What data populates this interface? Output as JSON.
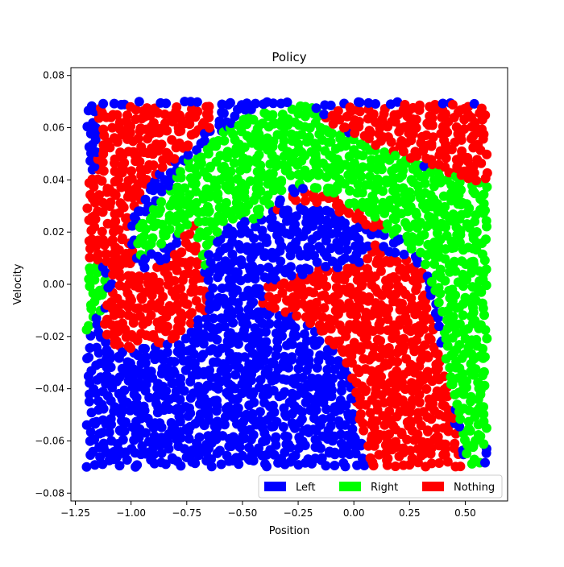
{
  "chart_data": {
    "type": "scatter",
    "title": "Policy",
    "xlabel": "Position",
    "ylabel": "Velocity",
    "xlim": [
      -1.27,
      0.69
    ],
    "ylim": [
      -0.083,
      0.083
    ],
    "xticks": [
      -1.25,
      -1.0,
      -0.75,
      -0.5,
      -0.25,
      0.0,
      0.25,
      0.5
    ],
    "xtick_labels": [
      "−1.25",
      "−1.00",
      "−0.75",
      "−0.50",
      "−0.25",
      "0.00",
      "0.25",
      "0.50"
    ],
    "yticks": [
      -0.08,
      -0.06,
      -0.04,
      -0.02,
      0.0,
      0.02,
      0.04,
      0.06,
      0.08
    ],
    "ytick_labels": [
      "−0.08",
      "−0.06",
      "−0.04",
      "−0.02",
      "0.00",
      "0.02",
      "0.04",
      "0.06",
      "0.08"
    ],
    "legend_position": "lower-right",
    "grid": false,
    "series": [
      {
        "name": "Left",
        "color": "#0000ff",
        "regions": [
          [
            [
              -1.2,
              0.068
            ],
            [
              -1.15,
              0.068
            ],
            [
              -1.15,
              0.043
            ],
            [
              -1.2,
              0.043
            ]
          ],
          [
            [
              -1.2,
              -0.025
            ],
            [
              -1.14,
              -0.022
            ],
            [
              -1.08,
              -0.026
            ],
            [
              -0.98,
              -0.028
            ],
            [
              -0.85,
              -0.024
            ],
            [
              -0.75,
              -0.02
            ],
            [
              -0.7,
              -0.012
            ],
            [
              -0.62,
              -0.005
            ],
            [
              -0.55,
              0.0
            ],
            [
              -0.47,
              0.004
            ],
            [
              -0.42,
              0.002
            ],
            [
              -0.4,
              -0.005
            ],
            [
              -0.38,
              -0.01
            ],
            [
              -0.3,
              -0.012
            ],
            [
              -0.2,
              -0.015
            ],
            [
              -0.12,
              -0.02
            ],
            [
              -0.05,
              -0.027
            ],
            [
              0.0,
              -0.04
            ],
            [
              0.02,
              -0.055
            ],
            [
              0.04,
              -0.065
            ],
            [
              0.05,
              -0.07
            ],
            [
              -1.2,
              -0.07
            ]
          ],
          [
            [
              -0.37,
              0.025
            ],
            [
              -0.3,
              0.032
            ],
            [
              -0.2,
              0.03
            ],
            [
              -0.14,
              0.026
            ],
            [
              -0.08,
              0.024
            ],
            [
              -0.02,
              0.02
            ],
            [
              0.03,
              0.016
            ],
            [
              0.05,
              0.012
            ],
            [
              0.01,
              0.007
            ],
            [
              -0.03,
              0.006
            ],
            [
              -0.08,
              0.006
            ],
            [
              -0.14,
              0.006
            ],
            [
              -0.17,
              0.011
            ],
            [
              -0.2,
              0.015
            ],
            [
              -0.24,
              0.016
            ],
            [
              -0.28,
              0.014
            ],
            [
              -0.34,
              0.016
            ],
            [
              -0.37,
              0.02
            ]
          ]
        ]
      },
      {
        "name": "Right",
        "color": "#00ff00",
        "regions": [
          [
            [
              -0.65,
              0.055
            ],
            [
              -0.5,
              0.064
            ],
            [
              -0.32,
              0.068
            ],
            [
              -0.2,
              0.069
            ],
            [
              -0.12,
              0.062
            ],
            [
              0.0,
              0.057
            ],
            [
              0.08,
              0.053
            ],
            [
              0.2,
              0.049
            ],
            [
              0.32,
              0.045
            ],
            [
              0.42,
              0.043
            ],
            [
              0.52,
              0.041
            ],
            [
              0.6,
              0.038
            ],
            [
              0.6,
              -0.055
            ],
            [
              0.57,
              -0.07
            ],
            [
              0.5,
              -0.07
            ],
            [
              0.47,
              -0.052
            ],
            [
              0.42,
              -0.035
            ],
            [
              0.38,
              -0.01
            ],
            [
              0.33,
              0.005
            ],
            [
              0.28,
              0.012
            ],
            [
              0.2,
              0.018
            ],
            [
              0.1,
              0.022
            ],
            [
              0.0,
              0.028
            ],
            [
              -0.1,
              0.033
            ],
            [
              -0.2,
              0.037
            ],
            [
              -0.3,
              0.037
            ],
            [
              -0.38,
              0.03
            ],
            [
              -0.45,
              0.024
            ],
            [
              -0.55,
              0.025
            ],
            [
              -0.6,
              0.022
            ],
            [
              -0.65,
              0.012
            ],
            [
              -0.68,
              0.002
            ],
            [
              -0.72,
              -0.008
            ],
            [
              -0.75,
              -0.006
            ],
            [
              -0.73,
              0.01
            ],
            [
              -0.7,
              0.024
            ],
            [
              -0.78,
              0.02
            ],
            [
              -0.85,
              0.015
            ],
            [
              -0.95,
              0.01
            ],
            [
              -1.0,
              0.012
            ],
            [
              -0.95,
              0.025
            ],
            [
              -0.85,
              0.035
            ],
            [
              -0.75,
              0.048
            ]
          ],
          [
            [
              -1.2,
              0.01
            ],
            [
              -1.12,
              0.006
            ],
            [
              -1.1,
              0.0
            ],
            [
              -1.12,
              -0.008
            ],
            [
              -1.16,
              -0.013
            ],
            [
              -1.2,
              -0.02
            ]
          ]
        ]
      },
      {
        "name": "Nothing",
        "color": "#ff0000",
        "regions": [
          [
            [
              -1.2,
              0.04
            ],
            [
              -1.15,
              0.043
            ],
            [
              -1.15,
              0.068
            ],
            [
              -0.6,
              0.069
            ],
            [
              -0.6,
              0.063
            ],
            [
              -0.68,
              0.057
            ],
            [
              -0.78,
              0.05
            ],
            [
              -0.88,
              0.042
            ],
            [
              -0.97,
              0.03
            ],
            [
              -1.02,
              0.018
            ],
            [
              -0.95,
              0.005
            ],
            [
              -0.83,
              0.01
            ],
            [
              -0.78,
              0.016
            ],
            [
              -0.72,
              0.024
            ],
            [
              -0.7,
              0.012
            ],
            [
              -0.67,
              0.002
            ],
            [
              -0.65,
              -0.008
            ],
            [
              -0.72,
              -0.015
            ],
            [
              -0.82,
              -0.022
            ],
            [
              -0.9,
              -0.024
            ],
            [
              -0.98,
              -0.025
            ],
            [
              -1.08,
              -0.023
            ],
            [
              -1.14,
              -0.02
            ],
            [
              -1.12,
              -0.01
            ],
            [
              -1.08,
              0.0
            ],
            [
              -1.1,
              0.006
            ],
            [
              -1.16,
              0.009
            ],
            [
              -1.2,
              0.01
            ]
          ],
          [
            [
              -0.13,
              0.063
            ],
            [
              -0.1,
              0.069
            ],
            [
              0.6,
              0.069
            ],
            [
              0.6,
              0.038
            ],
            [
              0.5,
              0.041
            ],
            [
              0.4,
              0.043
            ],
            [
              0.3,
              0.046
            ],
            [
              0.18,
              0.05
            ],
            [
              0.05,
              0.055
            ]
          ],
          [
            [
              -0.42,
              -0.006
            ],
            [
              -0.38,
              0.0
            ],
            [
              -0.3,
              0.002
            ],
            [
              -0.2,
              0.004
            ],
            [
              -0.13,
              0.009
            ],
            [
              -0.08,
              0.006
            ],
            [
              -0.03,
              0.006
            ],
            [
              0.02,
              0.008
            ],
            [
              0.06,
              0.012
            ],
            [
              0.08,
              0.019
            ],
            [
              0.15,
              0.012
            ],
            [
              0.28,
              0.008
            ],
            [
              0.32,
              0.004
            ],
            [
              0.36,
              -0.01
            ],
            [
              0.4,
              -0.03
            ],
            [
              0.44,
              -0.048
            ],
            [
              0.47,
              -0.06
            ],
            [
              0.5,
              -0.07
            ],
            [
              0.05,
              -0.07
            ],
            [
              0.04,
              -0.06
            ],
            [
              0.0,
              -0.04
            ],
            [
              -0.08,
              -0.025
            ],
            [
              -0.15,
              -0.018
            ],
            [
              -0.25,
              -0.013
            ],
            [
              -0.33,
              -0.011
            ],
            [
              -0.4,
              -0.009
            ]
          ],
          [
            [
              -0.37,
              0.024
            ],
            [
              -0.35,
              0.03
            ],
            [
              -0.28,
              0.035
            ],
            [
              -0.2,
              0.036
            ],
            [
              -0.1,
              0.034
            ],
            [
              0.0,
              0.03
            ],
            [
              0.08,
              0.026
            ],
            [
              0.15,
              0.022
            ],
            [
              0.1,
              0.02
            ],
            [
              0.04,
              0.022
            ],
            [
              -0.05,
              0.027
            ],
            [
              -0.13,
              0.029
            ],
            [
              -0.2,
              0.031
            ],
            [
              -0.28,
              0.03
            ],
            [
              -0.33,
              0.026
            ]
          ]
        ]
      }
    ]
  }
}
